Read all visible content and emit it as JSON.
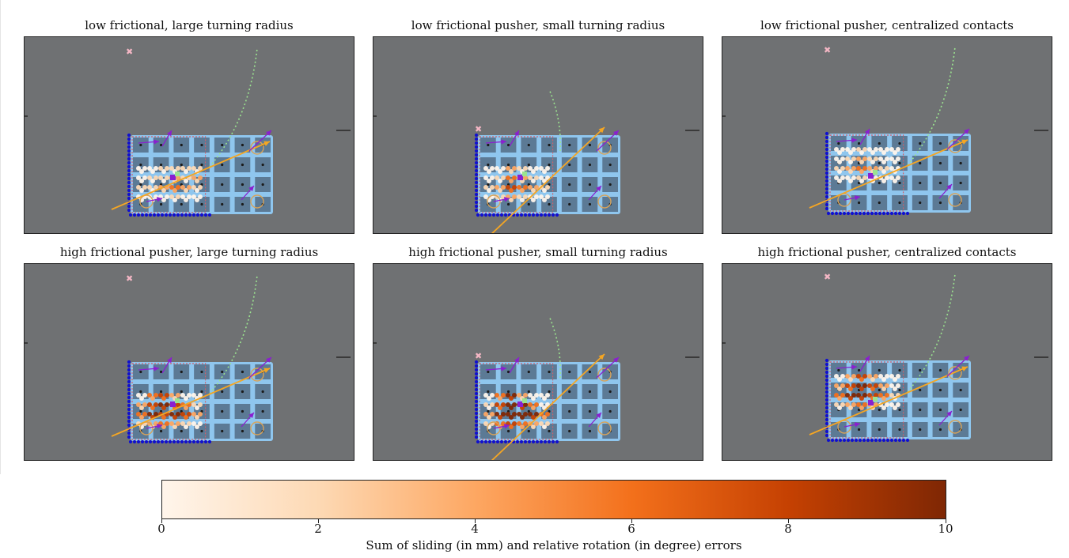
{
  "panels": [
    {
      "title": "low frictional, large turning radius",
      "variant": "large-radius",
      "friction": "low",
      "patch": [
        [
          0,
          0,
          1,
          1,
          1,
          1
        ],
        [
          0,
          1,
          1,
          2,
          1,
          2
        ],
        [
          1,
          1,
          2,
          3,
          2,
          1
        ],
        [
          0,
          0,
          0,
          1,
          0,
          0
        ]
      ]
    },
    {
      "title": "low frictional pusher, small turning radius",
      "variant": "small-radius",
      "friction": "low",
      "patch": [
        [
          0,
          0,
          2,
          1,
          0,
          0
        ],
        [
          0,
          1,
          3,
          2,
          1,
          0
        ],
        [
          1,
          2,
          4,
          3,
          2,
          1
        ],
        [
          0,
          1,
          2,
          1,
          0,
          0
        ]
      ]
    },
    {
      "title": "low frictional pusher, centralized contacts",
      "variant": "centralized",
      "friction": "low",
      "patch": [
        [
          0,
          0,
          1,
          0,
          0,
          0
        ],
        [
          0,
          1,
          2,
          1,
          0,
          0
        ],
        [
          1,
          2,
          3,
          2,
          1,
          0
        ],
        [
          0,
          0,
          1,
          0,
          0,
          0
        ]
      ]
    },
    {
      "title": "high frictional pusher, large turning radius",
      "variant": "large-radius",
      "friction": "high",
      "patch": [
        [
          0,
          3,
          4,
          2,
          0,
          0
        ],
        [
          2,
          4,
          5,
          4,
          3,
          1
        ],
        [
          3,
          5,
          4,
          5,
          4,
          2
        ],
        [
          1,
          2,
          3,
          2,
          1,
          0
        ]
      ]
    },
    {
      "title": "high frictional pusher, small turning radius",
      "variant": "small-radius",
      "friction": "high",
      "patch": [
        [
          0,
          3,
          5,
          2,
          0,
          0
        ],
        [
          1,
          4,
          6,
          5,
          3,
          0
        ],
        [
          2,
          5,
          6,
          6,
          5,
          3
        ],
        [
          1,
          3,
          4,
          3,
          2,
          1
        ]
      ]
    },
    {
      "title": "high frictional pusher, centralized contacts",
      "variant": "centralized",
      "friction": "high",
      "patch": [
        [
          0,
          2,
          4,
          2,
          0,
          0
        ],
        [
          2,
          4,
          5,
          4,
          2,
          0
        ],
        [
          3,
          5,
          5,
          4,
          3,
          1
        ],
        [
          1,
          2,
          3,
          2,
          0,
          0
        ]
      ]
    }
  ],
  "colorbar": {
    "label": "Sum of sliding (in mm) and relative rotation (in degree) errors",
    "min": 0,
    "max": 10,
    "ticks": [
      "0",
      "2",
      "4",
      "6",
      "8",
      "10"
    ],
    "colors": [
      "#fff5eb",
      "#fdd9b4",
      "#fda762",
      "#f3701b",
      "#c54102",
      "#7f2704"
    ]
  },
  "colors": {
    "floor": "#6f7173",
    "tray": "#8fc6ee",
    "cell": "#5c7a95",
    "contact_dots": "#1010d0",
    "pusher_path": "#f5a623",
    "target_path": "#9be38f",
    "arrows": "#8a1fd0",
    "marker": "#f3b6c4"
  }
}
